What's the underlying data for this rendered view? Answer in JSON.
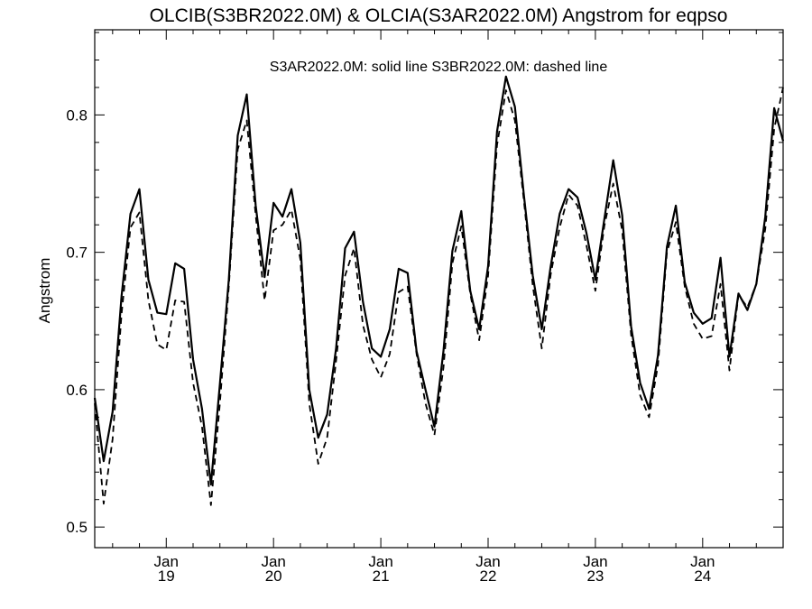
{
  "chart_data": {
    "type": "line",
    "title": "OLCIB(S3BR2022.0M) & OLCIA(S3AR2022.0M)  Angstrom for eqpso",
    "annotation": "S3AR2022.0M: solid line   S3BR2022.0M: dashed line",
    "ylabel": "Angstrom",
    "xlabel": "",
    "ylim": [
      0.485,
      0.862
    ],
    "grid": false,
    "yticks": [
      0.5,
      0.6,
      0.7,
      0.8
    ],
    "ytick_labels": [
      "0.5",
      "0.6",
      "0.7",
      "0.8"
    ],
    "xticks": [
      {
        "month": "Jan",
        "year": "19"
      },
      {
        "month": "Jan",
        "year": "20"
      },
      {
        "month": "Jan",
        "year": "21"
      },
      {
        "month": "Jan",
        "year": "22"
      },
      {
        "month": "Jan",
        "year": "23"
      },
      {
        "month": "Jan",
        "year": "24"
      }
    ],
    "x_start": "2018-05",
    "series": [
      {
        "name": "S3AR2022.0M",
        "style": "solid",
        "values": [
          0.594,
          0.548,
          0.584,
          0.668,
          0.728,
          0.746,
          0.68,
          0.656,
          0.655,
          0.692,
          0.688,
          0.622,
          0.586,
          0.531,
          0.604,
          0.68,
          0.785,
          0.815,
          0.734,
          0.682,
          0.736,
          0.726,
          0.746,
          0.707,
          0.6,
          0.565,
          0.582,
          0.63,
          0.703,
          0.715,
          0.664,
          0.63,
          0.624,
          0.644,
          0.688,
          0.685,
          0.628,
          0.6,
          0.573,
          0.628,
          0.701,
          0.73,
          0.672,
          0.644,
          0.69,
          0.788,
          0.828,
          0.806,
          0.742,
          0.683,
          0.644,
          0.69,
          0.728,
          0.746,
          0.74,
          0.714,
          0.68,
          0.724,
          0.767,
          0.727,
          0.646,
          0.605,
          0.586,
          0.625,
          0.704,
          0.734,
          0.678,
          0.656,
          0.648,
          0.652,
          0.696,
          0.624,
          0.67,
          0.658,
          0.677,
          0.726,
          0.805,
          0.781
        ]
      },
      {
        "name": "S3BR2022.0M",
        "style": "dashed",
        "values": [
          0.59,
          0.517,
          0.564,
          0.655,
          0.718,
          0.729,
          0.665,
          0.633,
          0.629,
          0.665,
          0.664,
          0.605,
          0.573,
          0.516,
          0.59,
          0.675,
          0.775,
          0.796,
          0.727,
          0.665,
          0.716,
          0.72,
          0.731,
          0.695,
          0.59,
          0.546,
          0.565,
          0.621,
          0.683,
          0.703,
          0.647,
          0.622,
          0.609,
          0.626,
          0.671,
          0.675,
          0.626,
          0.59,
          0.567,
          0.616,
          0.692,
          0.719,
          0.67,
          0.636,
          0.683,
          0.778,
          0.818,
          0.796,
          0.738,
          0.676,
          0.63,
          0.684,
          0.718,
          0.742,
          0.734,
          0.705,
          0.672,
          0.719,
          0.75,
          0.716,
          0.64,
          0.596,
          0.58,
          0.618,
          0.7,
          0.722,
          0.675,
          0.648,
          0.637,
          0.639,
          0.677,
          0.614,
          0.669,
          0.66,
          0.677,
          0.717,
          0.79,
          0.82
        ]
      }
    ]
  }
}
